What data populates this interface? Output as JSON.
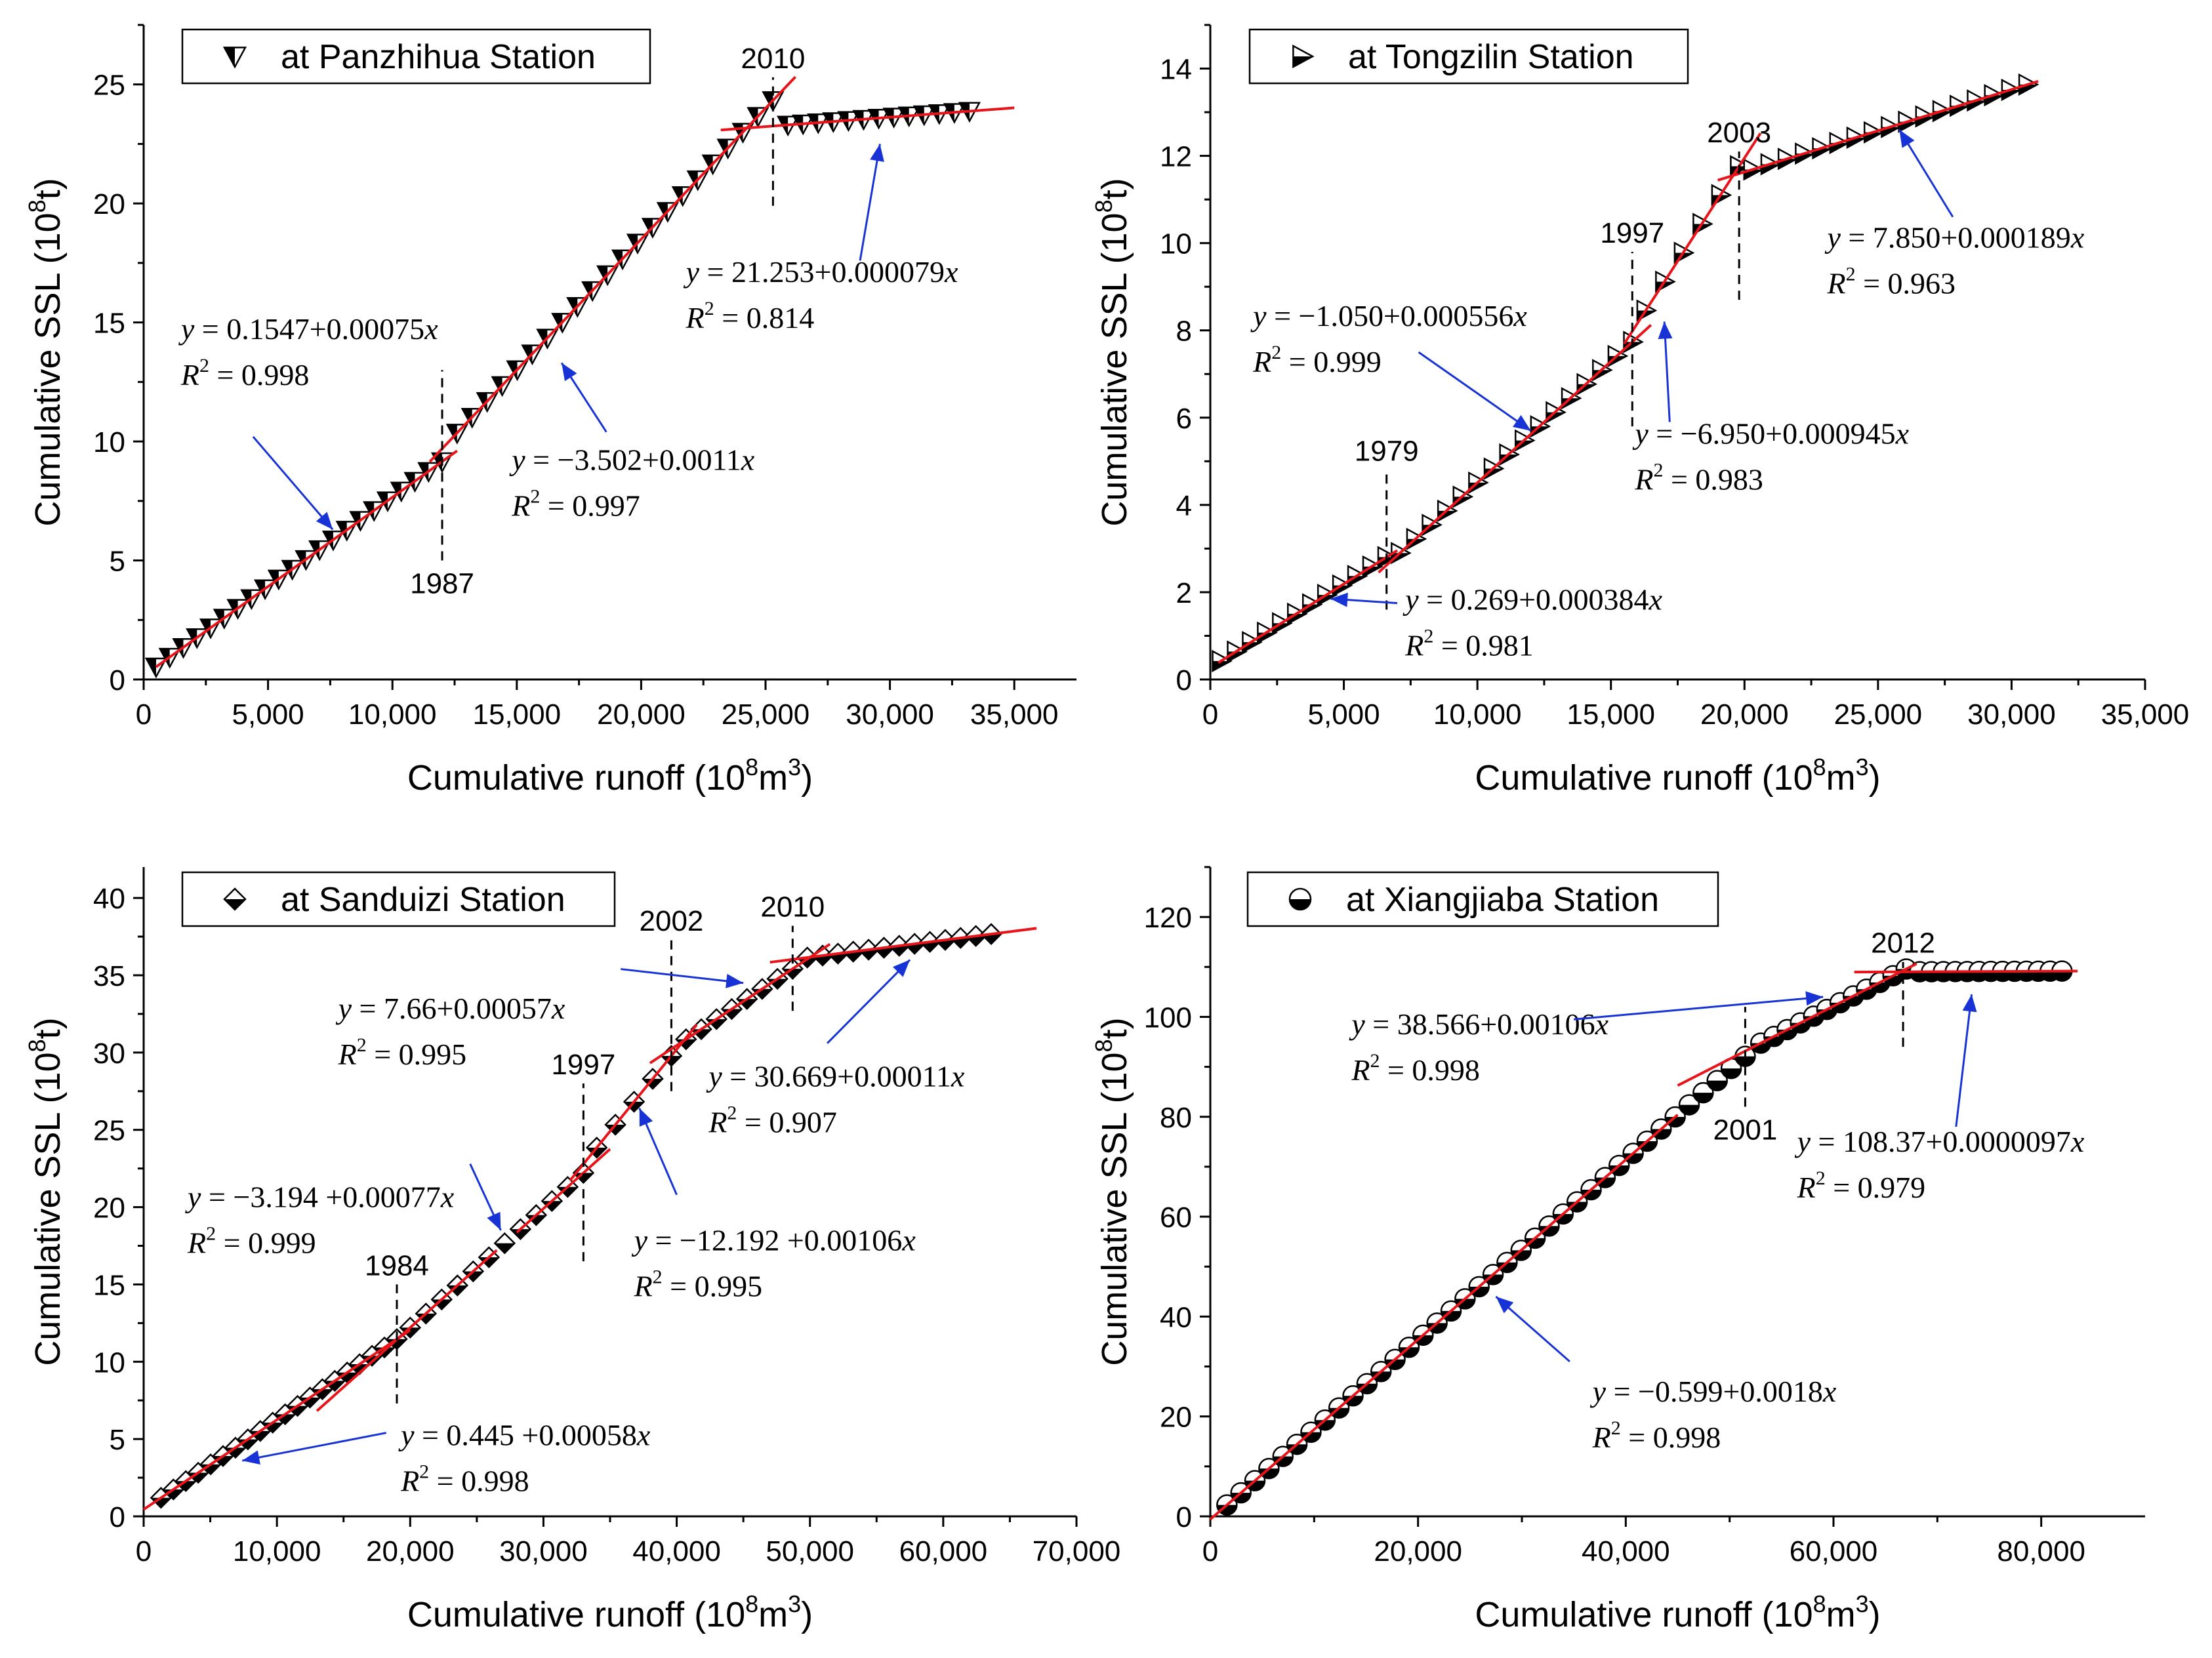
{
  "chart_data": [
    {
      "type": "scatter",
      "title": "",
      "legend": "at Panzhihua Station",
      "marker": "down-triangle",
      "xlabel": "Cumulative runoff (10",
      "xlabel_sup": "8",
      "xlabel_unit": "m",
      "xlabel_sup2": "3",
      "xlabel_end": ")",
      "ylabel": "Cumulative SSL (10",
      "ylabel_sup": "8",
      "ylabel_end": "t)",
      "xlim": [
        0,
        37500
      ],
      "ylim": [
        0,
        27.5
      ],
      "xticks": [
        0,
        5000,
        10000,
        15000,
        20000,
        25000,
        30000,
        35000
      ],
      "xtick_labels": [
        "0",
        "5,000",
        "10,000",
        "15,000",
        "20,000",
        "25,000",
        "30,000",
        "35,000"
      ],
      "yticks": [
        0,
        5,
        10,
        15,
        20,
        25
      ],
      "ytick_labels": [
        "0",
        "5",
        "10",
        "15",
        "20",
        "25"
      ],
      "segments": [
        {
          "x0": 500,
          "x1": 12000,
          "intercept": 0.1547,
          "slope": 0.00075,
          "n": 22
        },
        {
          "x0": 12600,
          "x1": 25300,
          "intercept": -3.502,
          "slope": 0.0011,
          "n": 22
        },
        {
          "x0": 25900,
          "x1": 33200,
          "intercept": 21.253,
          "slope": 7.9e-05,
          "n": 13
        }
      ],
      "fits": [
        {
          "intercept": 0.1547,
          "slope": 0.00075,
          "x": [
            500,
            12600
          ]
        },
        {
          "intercept": -3.502,
          "slope": 0.0011,
          "x": [
            11500,
            26200
          ]
        },
        {
          "intercept": 21.253,
          "slope": 7.9e-05,
          "x": [
            23200,
            35000
          ]
        }
      ],
      "breakpoints": [
        {
          "label": "1987",
          "x": 12000,
          "y0": 5.0,
          "y1": 13.0,
          "label_pos": "below"
        },
        {
          "label": "2010",
          "x": 25300,
          "y0": 19.9,
          "y1": 25.3,
          "label_pos": "above"
        }
      ],
      "annotations": [
        {
          "eq_y": "y",
          "eq_rest": " = 0.1547+0.00075",
          "eq_x": "x",
          "r2": " = 0.998",
          "ax": 1500,
          "ay": 14.3,
          "arrow": {
            "x0": 4400,
            "y0": 10.2,
            "x1": 7600,
            "y1": 6.3
          }
        },
        {
          "eq_y": "y",
          "eq_rest": " = −3.502+0.0011",
          "eq_x": "x",
          "r2": " = 0.997",
          "ax": 14800,
          "ay": 8.8,
          "arrow": {
            "x0": 18600,
            "y0": 10.4,
            "x1": 16800,
            "y1": 13.3
          }
        },
        {
          "eq_y": "y",
          "eq_rest": " = 21.253+0.000079",
          "eq_x": "x",
          "r2": " = 0.814",
          "ax": 21800,
          "ay": 16.7,
          "arrow": {
            "x0": 28800,
            "y0": 17.6,
            "x1": 29600,
            "y1": 22.5
          }
        }
      ]
    },
    {
      "type": "scatter",
      "title": "",
      "legend": "at Tongzilin Station",
      "marker": "right-triangle",
      "xlabel": "Cumulative runoff (10",
      "xlabel_sup": "8",
      "xlabel_unit": "m",
      "xlabel_sup2": "3",
      "xlabel_end": ")",
      "ylabel": "Cumulative SSL (10",
      "ylabel_sup": "8",
      "ylabel_end": "t)",
      "xlim": [
        0,
        35000
      ],
      "ylim": [
        0,
        15
      ],
      "xticks": [
        0,
        5000,
        10000,
        15000,
        20000,
        25000,
        30000,
        35000
      ],
      "xtick_labels": [
        "0",
        "5,000",
        "10,000",
        "15,000",
        "20,000",
        "25,000",
        "30,000",
        "35,000"
      ],
      "yticks": [
        0,
        2,
        4,
        6,
        8,
        10,
        12,
        14
      ],
      "ytick_labels": [
        "0",
        "2",
        "4",
        "6",
        "8",
        "10",
        "12",
        "14"
      ],
      "segments": [
        {
          "x0": 400,
          "x1": 6600,
          "intercept": 0.269,
          "slope": 0.000384,
          "n": 12
        },
        {
          "x0": 7100,
          "x1": 15800,
          "intercept": -1.05,
          "slope": 0.000556,
          "n": 16
        },
        {
          "x0": 16300,
          "x1": 19800,
          "intercept": -6.95,
          "slope": 0.000945,
          "n": 6
        },
        {
          "x0": 20300,
          "x1": 30600,
          "intercept": 7.85,
          "slope": 0.000189,
          "n": 17
        }
      ],
      "fits": [
        {
          "intercept": 0.269,
          "slope": 0.000384,
          "x": [
            300,
            7000
          ]
        },
        {
          "intercept": -1.05,
          "slope": 0.000556,
          "x": [
            6300,
            16500
          ]
        },
        {
          "intercept": -6.95,
          "slope": 0.000945,
          "x": [
            15500,
            20600
          ]
        },
        {
          "intercept": 7.85,
          "slope": 0.000189,
          "x": [
            19000,
            31000
          ]
        }
      ],
      "breakpoints": [
        {
          "label": "1979",
          "x": 6600,
          "y0": 1.6,
          "y1": 4.8,
          "label_pos": "above"
        },
        {
          "label": "1997",
          "x": 15800,
          "y0": 5.8,
          "y1": 9.8,
          "label_pos": "above"
        },
        {
          "label": "2003",
          "x": 19800,
          "y0": 8.7,
          "y1": 12.1,
          "label_pos": "above"
        }
      ],
      "annotations": [
        {
          "eq_y": "y",
          "eq_rest": " = −1.050+0.000556",
          "eq_x": "x",
          "r2": " = 0.999",
          "ax": 1600,
          "ay": 8.1,
          "arrow": {
            "x0": 7800,
            "y0": 7.5,
            "x1": 12000,
            "y1": 5.7
          }
        },
        {
          "eq_y": "y",
          "eq_rest": " = −6.950+0.000945",
          "eq_x": "x",
          "r2": " = 0.983",
          "ax": 15900,
          "ay": 5.4,
          "arrow": {
            "x0": 17200,
            "y0": 5.9,
            "x1": 17000,
            "y1": 8.2
          }
        },
        {
          "eq_y": "y",
          "eq_rest": " = 0.269+0.000384",
          "eq_x": "x",
          "r2": " = 0.981",
          "ax": 7300,
          "ay": 1.6,
          "arrow": {
            "x0": 7000,
            "y0": 1.75,
            "x1": 4500,
            "y1": 1.85
          }
        },
        {
          "eq_y": "y",
          "eq_rest": " = 7.850+0.000189",
          "eq_x": "x",
          "r2": " = 0.963",
          "ax": 23100,
          "ay": 9.9,
          "arrow": {
            "x0": 27800,
            "y0": 10.6,
            "x1": 25800,
            "y1": 12.6
          }
        }
      ]
    },
    {
      "type": "scatter",
      "title": "",
      "legend": "at Sanduizi Station",
      "marker": "diamond",
      "xlabel": "Cumulative runoff (10",
      "xlabel_sup": "8",
      "xlabel_unit": "m",
      "xlabel_sup2": "3",
      "xlabel_end": ")",
      "ylabel": "Cumulative SSL (10",
      "ylabel_sup": "8",
      "ylabel_end": "t)",
      "xlim": [
        0,
        70000
      ],
      "ylim": [
        0,
        42
      ],
      "xticks": [
        0,
        10000,
        20000,
        30000,
        40000,
        50000,
        60000,
        70000
      ],
      "xtick_labels": [
        "0",
        "10,000",
        "20,000",
        "30,000",
        "40,000",
        "50,000",
        "60,000",
        "70,000"
      ],
      "yticks": [
        0,
        5,
        10,
        15,
        20,
        25,
        30,
        35,
        40
      ],
      "ytick_labels": [
        "0",
        "5",
        "10",
        "15",
        "20",
        "25",
        "30",
        "35",
        "40"
      ],
      "segments": [
        {
          "x0": 1300,
          "x1": 19000,
          "intercept": 0.445,
          "slope": 0.00058,
          "n": 20
        },
        {
          "x0": 20000,
          "x1": 33000,
          "intercept": -3.194,
          "slope": 0.00077,
          "n": 12
        },
        {
          "x0": 34000,
          "x1": 39600,
          "intercept": -12.192,
          "slope": 0.00106,
          "n": 5
        },
        {
          "x0": 40700,
          "x1": 48700,
          "intercept": 7.66,
          "slope": 0.00057,
          "n": 8
        },
        {
          "x0": 49800,
          "x1": 63600,
          "intercept": 30.669,
          "slope": 0.00011,
          "n": 13
        }
      ],
      "fits": [
        {
          "intercept": 0.445,
          "slope": 0.00058,
          "x": [
            0,
            20000
          ]
        },
        {
          "intercept": -3.194,
          "slope": 0.00077,
          "x": [
            13000,
            26500
          ]
        },
        {
          "intercept": -3.194,
          "slope": 0.00077,
          "x": [
            28000,
            35000
          ]
        },
        {
          "intercept": -12.192,
          "slope": 0.00106,
          "x": [
            32000,
            41500
          ]
        },
        {
          "intercept": 7.66,
          "slope": 0.00057,
          "x": [
            38000,
            51500
          ]
        },
        {
          "intercept": 30.669,
          "slope": 0.00011,
          "x": [
            47000,
            67000
          ]
        }
      ],
      "breakpoints": [
        {
          "label": "1984",
          "x": 19000,
          "y0": 7.3,
          "y1": 15.0,
          "label_pos": "above"
        },
        {
          "label": "1997",
          "x": 33000,
          "y0": 16.5,
          "y1": 28.0,
          "label_pos": "above"
        },
        {
          "label": "2002",
          "x": 39600,
          "y0": 27.5,
          "y1": 37.3,
          "label_pos": "above"
        },
        {
          "label": "2010",
          "x": 48700,
          "y0": 32.7,
          "y1": 38.2,
          "label_pos": "above"
        }
      ],
      "annotations": [
        {
          "eq_y": "y",
          "eq_rest": " = 7.66+0.00057",
          "eq_x": "x",
          "r2": " = 0.995",
          "ax": 14600,
          "ay": 32.2,
          "arrow": {
            "x0": 35800,
            "y0": 35.4,
            "x1": 45000,
            "y1": 34.5
          }
        },
        {
          "eq_y": "y",
          "eq_rest": " = 30.669+0.00011",
          "eq_x": "x",
          "r2": " = 0.907",
          "ax": 42400,
          "ay": 27.8,
          "arrow": {
            "x0": 51300,
            "y0": 30.6,
            "x1": 57500,
            "y1": 36.0
          }
        },
        {
          "eq_y": "y",
          "eq_rest": " = −3.194 +0.00077",
          "eq_x": "x",
          "r2": " = 0.999",
          "ax": 3300,
          "ay": 20.0,
          "arrow": {
            "x0": 24500,
            "y0": 22.8,
            "x1": 26800,
            "y1": 18.5
          }
        },
        {
          "eq_y": "y",
          "eq_rest": " = −12.192 +0.00106",
          "eq_x": "x",
          "r2": " = 0.995",
          "ax": 36800,
          "ay": 17.2,
          "arrow": {
            "x0": 40000,
            "y0": 20.8,
            "x1": 37200,
            "y1": 26.4
          }
        },
        {
          "eq_y": "y",
          "eq_rest": " = 0.445 +0.00058",
          "eq_x": "x",
          "r2": " = 0.998",
          "ax": 19300,
          "ay": 4.6,
          "arrow": {
            "x0": 18200,
            "y0": 5.4,
            "x1": 7400,
            "y1": 3.6
          }
        }
      ]
    },
    {
      "type": "scatter",
      "title": "",
      "legend": "at Xiangjiaba Station",
      "marker": "half-circle",
      "xlabel": "Cumulative runoff (10",
      "xlabel_sup": "8",
      "xlabel_unit": "m",
      "xlabel_sup2": "3",
      "xlabel_end": ")",
      "ylabel": "Cumulative SSL (10",
      "ylabel_sup": "8",
      "ylabel_end": "t)",
      "xlim": [
        0,
        90000
      ],
      "ylim": [
        0,
        130
      ],
      "xticks": [
        0,
        20000,
        40000,
        60000,
        80000
      ],
      "xtick_labels": [
        "0",
        "20,000",
        "40,000",
        "60,000",
        "80,000"
      ],
      "yticks": [
        0,
        20,
        40,
        60,
        80,
        100,
        120
      ],
      "ytick_labels": [
        "0",
        "20",
        "40",
        "60",
        "80",
        "100",
        "120"
      ],
      "segments": [
        {
          "x0": 1600,
          "x1": 51500,
          "intercept": -0.599,
          "slope": 0.0018,
          "n": 38
        },
        {
          "x0": 53000,
          "x1": 67000,
          "intercept": 38.566,
          "slope": 0.00106,
          "n": 12
        },
        {
          "x0": 68300,
          "x1": 82000,
          "intercept": 108.37,
          "slope": 9.7e-06,
          "n": 13
        }
      ],
      "fits": [
        {
          "intercept": -0.599,
          "slope": 0.0018,
          "x": [
            0,
            45000
          ]
        },
        {
          "intercept": 38.566,
          "slope": 0.00106,
          "x": [
            45000,
            68000
          ]
        },
        {
          "intercept": 108.37,
          "slope": 9.7e-06,
          "x": [
            62000,
            83500
          ]
        }
      ],
      "breakpoints": [
        {
          "label": "2001",
          "x": 51500,
          "y0": 82.0,
          "y1": 102.0,
          "label_pos": "below"
        },
        {
          "label": "2012",
          "x": 66700,
          "y0": 94.0,
          "y1": 111.0,
          "label_pos": "above"
        }
      ],
      "annotations": [
        {
          "eq_y": "y",
          "eq_rest": " = 38.566+0.00106",
          "eq_x": "x",
          "r2": " = 0.998",
          "ax": 13600,
          "ay": 96.5,
          "arrow": {
            "x0": 35000,
            "y0": 99.5,
            "x1": 59000,
            "y1": 104.0
          }
        },
        {
          "eq_y": "y",
          "eq_rest": " = 108.37+0.0000097",
          "eq_x": "x",
          "r2": " = 0.979",
          "ax": 56500,
          "ay": 73.0,
          "arrow": {
            "x0": 71800,
            "y0": 78.0,
            "x1": 73300,
            "y1": 104.5
          }
        },
        {
          "eq_y": "y",
          "eq_rest": " = −0.599+0.0018",
          "eq_x": "x",
          "r2": " = 0.998",
          "ax": 36800,
          "ay": 23.0,
          "arrow": {
            "x0": 34600,
            "y0": 31.0,
            "x1": 27500,
            "y1": 44.0
          }
        }
      ]
    }
  ]
}
